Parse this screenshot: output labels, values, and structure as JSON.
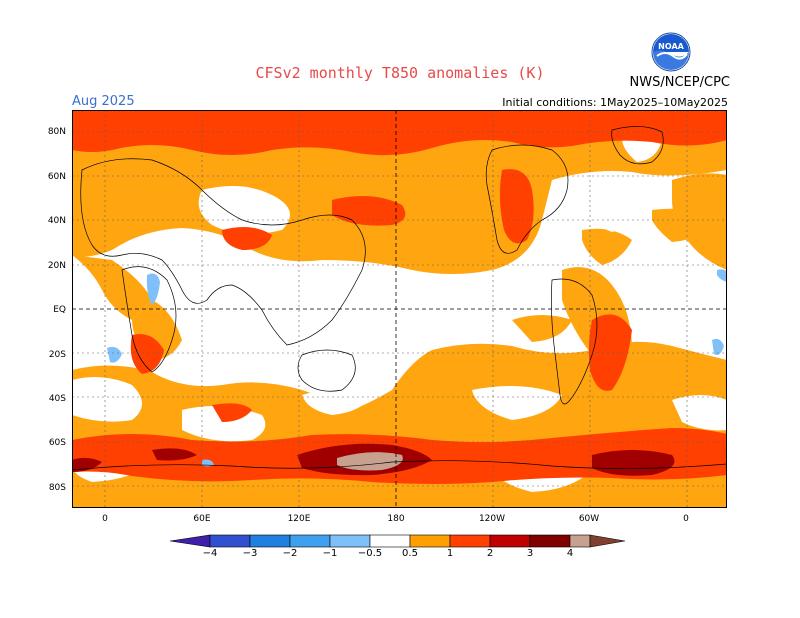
{
  "title": "CFSv2 monthly T850 anomalies (K)",
  "agency": "NWS/NCEP/CPC",
  "valid_month": "Aug 2025",
  "initial_conditions": "Initial conditions: 1May2025–10May2025",
  "logo_text": "NOAA",
  "latitude_labels": [
    "80N",
    "60N",
    "40N",
    "20N",
    "EQ",
    "20S",
    "40S",
    "60S",
    "80S"
  ],
  "longitude_labels": [
    "0",
    "60E",
    "120E",
    "180",
    "120W",
    "60W",
    "0"
  ],
  "colorbar": {
    "labels": [
      "−4",
      "−3",
      "−2",
      "−1",
      "−0.5",
      "0.5",
      "1",
      "2",
      "3",
      "4"
    ],
    "colors": [
      "#4020a8",
      "#3050d0",
      "#2080e0",
      "#40a0f0",
      "#80c0f8",
      "#ffffff",
      "#ffa000",
      "#ff4000",
      "#c00000",
      "#800000",
      "#c8a090",
      "#804030"
    ]
  },
  "shading_colors": {
    "weak_positive": "#ffa510",
    "moderate_positive": "#ff4000",
    "strong_positive": "#ff2000",
    "very_strong": "#a00000",
    "extreme": "#c8a090",
    "weak_negative": "#80c0f8"
  }
}
